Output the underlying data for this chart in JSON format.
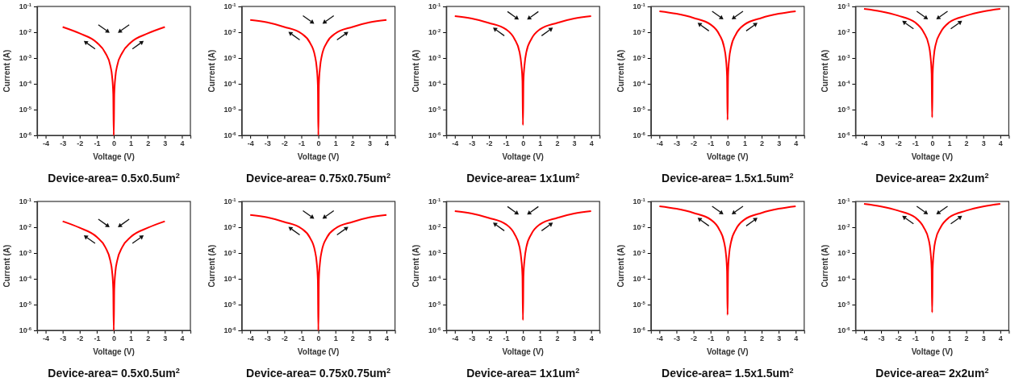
{
  "chart_data": [
    {
      "type": "line",
      "title": "Device-area= 0.5x0.5um$^{2}$",
      "xlabel": "Voltage (V)",
      "ylabel": "Current (A)",
      "log": "y",
      "grid": false,
      "marker": "none",
      "line_style": "solid",
      "xlim": [
        -4.5,
        4.5
      ],
      "xticks": [
        -4,
        -3,
        -2,
        -1,
        0,
        1,
        2,
        3,
        4
      ],
      "ylim": [
        1e-06,
        0.1
      ],
      "yticks": [
        {
          "value": 1e-06,
          "label": "10$^{-6}$"
        },
        {
          "value": 1e-05,
          "label": "10$^{-5}$"
        },
        {
          "value": 0.0001,
          "label": "10$^{-4}$"
        },
        {
          "value": 0.001,
          "label": "10$^{-3}$"
        },
        {
          "value": 0.01,
          "label": "10$^{-2}$"
        },
        {
          "value": 0.1,
          "label": "10$^{-1}$"
        }
      ],
      "series": [
        {
          "color": "#ff0000",
          "x": [
            -3,
            -2,
            -1,
            -0.5,
            -0.2,
            -0.1,
            -0.03,
            0,
            0.03,
            0.1,
            0.2,
            0.5,
            1,
            2,
            3
          ],
          "values": [
            0.016,
            0.009,
            0.004,
            0.0016,
            0.0005,
            0.0002,
            4e-05,
            1e-06,
            4e-05,
            0.0002,
            0.0005,
            0.0016,
            0.004,
            0.009,
            0.016
          ]
        }
      ]
    },
    {
      "type": "line",
      "title": "Device-area= 0.75x0.75um$^{2}$",
      "xlabel": "Voltage (V)",
      "ylabel": "Current (A)",
      "log": "y",
      "grid": false,
      "marker": "none",
      "line_style": "solid",
      "xlim": [
        -4.5,
        4.5
      ],
      "xticks": [
        -4,
        -3,
        -2,
        -1,
        0,
        1,
        2,
        3,
        4
      ],
      "ylim": [
        1e-06,
        0.1
      ],
      "yticks": [
        {
          "value": 1e-06,
          "label": "10$^{-6}$"
        },
        {
          "value": 1e-05,
          "label": "10$^{-5}$"
        },
        {
          "value": 0.0001,
          "label": "10$^{-4}$"
        },
        {
          "value": 0.001,
          "label": "10$^{-3}$"
        },
        {
          "value": 0.01,
          "label": "10$^{-2}$"
        },
        {
          "value": 0.1,
          "label": "10$^{-1}$"
        }
      ],
      "series": [
        {
          "color": "#ff0000",
          "x": [
            -4,
            -3,
            -2,
            -1,
            -0.5,
            -0.2,
            -0.1,
            -0.03,
            0,
            0.03,
            0.1,
            0.2,
            0.5,
            1,
            2,
            3,
            4
          ],
          "values": [
            0.03,
            0.024,
            0.016,
            0.009,
            0.004,
            0.0012,
            0.00045,
            9e-05,
            1e-06,
            9e-05,
            0.00045,
            0.0012,
            0.004,
            0.009,
            0.016,
            0.024,
            0.03
          ]
        }
      ]
    },
    {
      "type": "line",
      "title": "Device-area= 1x1um$^{2}$",
      "xlabel": "Voltage (V)",
      "ylabel": "Current (A)",
      "log": "y",
      "grid": false,
      "marker": "none",
      "line_style": "solid",
      "xlim": [
        -4.5,
        4.5
      ],
      "xticks": [
        -4,
        -3,
        -2,
        -1,
        0,
        1,
        2,
        3,
        4
      ],
      "ylim": [
        1e-06,
        0.1
      ],
      "yticks": [
        {
          "value": 1e-06,
          "label": "10$^{-6}$"
        },
        {
          "value": 1e-05,
          "label": "10$^{-5}$"
        },
        {
          "value": 0.0001,
          "label": "10$^{-4}$"
        },
        {
          "value": 0.001,
          "label": "10$^{-3}$"
        },
        {
          "value": 0.01,
          "label": "10$^{-2}$"
        },
        {
          "value": 0.1,
          "label": "10$^{-1}$"
        }
      ],
      "series": [
        {
          "color": "#ff0000",
          "x": [
            -4,
            -3,
            -2,
            -1,
            -0.5,
            -0.2,
            -0.1,
            -0.03,
            0,
            0.03,
            0.1,
            0.2,
            0.5,
            1,
            2,
            3,
            4
          ],
          "values": [
            0.042,
            0.034,
            0.023,
            0.013,
            0.0055,
            0.0017,
            0.0006,
            0.00013,
            2.5e-06,
            0.00013,
            0.0006,
            0.0017,
            0.0055,
            0.013,
            0.023,
            0.034,
            0.042
          ]
        }
      ]
    },
    {
      "type": "line",
      "title": "Device-area= 1.5x1.5um$^{2}$",
      "xlabel": "Voltage (V)",
      "ylabel": "Current (A)",
      "log": "y",
      "grid": false,
      "marker": "none",
      "line_style": "solid",
      "xlim": [
        -4.5,
        4.5
      ],
      "xticks": [
        -4,
        -3,
        -2,
        -1,
        0,
        1,
        2,
        3,
        4
      ],
      "ylim": [
        1e-06,
        0.1
      ],
      "yticks": [
        {
          "value": 1e-06,
          "label": "10$^{-6}$"
        },
        {
          "value": 1e-05,
          "label": "10$^{-5}$"
        },
        {
          "value": 0.0001,
          "label": "10$^{-4}$"
        },
        {
          "value": 0.001,
          "label": "10$^{-3}$"
        },
        {
          "value": 0.01,
          "label": "10$^{-2}$"
        },
        {
          "value": 0.1,
          "label": "10$^{-1}$"
        }
      ],
      "series": [
        {
          "color": "#ff0000",
          "x": [
            -4,
            -3,
            -2,
            -1,
            -0.5,
            -0.2,
            -0.1,
            -0.03,
            0,
            0.03,
            0.1,
            0.2,
            0.5,
            1,
            2,
            3,
            4
          ],
          "values": [
            0.065,
            0.052,
            0.036,
            0.02,
            0.0085,
            0.0026,
            0.001,
            0.0002,
            4e-06,
            0.0002,
            0.001,
            0.0026,
            0.0085,
            0.02,
            0.036,
            0.052,
            0.065
          ]
        }
      ]
    },
    {
      "type": "line",
      "title": "Device-area= 2x2um$^{2}$",
      "xlabel": "Voltage (V)",
      "ylabel": "Current (A)",
      "log": "y",
      "grid": false,
      "marker": "none",
      "line_style": "solid",
      "xlim": [
        -4.5,
        4.5
      ],
      "xticks": [
        -4,
        -3,
        -2,
        -1,
        0,
        1,
        2,
        3,
        4
      ],
      "ylim": [
        1e-06,
        0.1
      ],
      "yticks": [
        {
          "value": 1e-06,
          "label": "10$^{-6}$"
        },
        {
          "value": 1e-05,
          "label": "10$^{-5}$"
        },
        {
          "value": 0.0001,
          "label": "10$^{-4}$"
        },
        {
          "value": 0.001,
          "label": "10$^{-3}$"
        },
        {
          "value": 0.01,
          "label": "10$^{-2}$"
        },
        {
          "value": 0.1,
          "label": "10$^{-1}$"
        }
      ],
      "series": [
        {
          "color": "#ff0000",
          "x": [
            -4,
            -3,
            -2,
            -1,
            -0.5,
            -0.2,
            -0.1,
            -0.03,
            0,
            0.03,
            0.1,
            0.2,
            0.5,
            1,
            2,
            3,
            4
          ],
          "values": [
            0.08,
            0.064,
            0.044,
            0.024,
            0.01,
            0.0032,
            0.0012,
            0.00024,
            5e-06,
            0.00024,
            0.0012,
            0.0032,
            0.01,
            0.024,
            0.044,
            0.064,
            0.08
          ]
        }
      ]
    },
    {
      "type": "line",
      "title": "Device-area= 0.5x0.5um$^{2}$",
      "xlabel": "Voltage (V)",
      "ylabel": "Current (A)",
      "log": "y",
      "grid": false,
      "marker": "none",
      "line_style": "solid",
      "xlim": [
        -4.5,
        4.5
      ],
      "xticks": [
        -4,
        -3,
        -2,
        -1,
        0,
        1,
        2,
        3,
        4
      ],
      "ylim": [
        1e-06,
        0.1
      ],
      "yticks": [
        {
          "value": 1e-06,
          "label": "10$^{-6}$"
        },
        {
          "value": 1e-05,
          "label": "10$^{-5}$"
        },
        {
          "value": 0.0001,
          "label": "10$^{-4}$"
        },
        {
          "value": 0.001,
          "label": "10$^{-3}$"
        },
        {
          "value": 0.01,
          "label": "10$^{-2}$"
        },
        {
          "value": 0.1,
          "label": "10$^{-1}$"
        }
      ],
      "series": [
        {
          "color": "#ff0000",
          "x": [
            -3,
            -2,
            -1,
            -0.5,
            -0.2,
            -0.1,
            -0.03,
            0,
            0.03,
            0.1,
            0.2,
            0.5,
            1,
            2,
            3
          ],
          "values": [
            0.017,
            0.0095,
            0.0042,
            0.0017,
            0.0005,
            0.0002,
            4e-05,
            1e-06,
            4e-05,
            0.0002,
            0.0005,
            0.0017,
            0.0042,
            0.0095,
            0.017
          ]
        }
      ]
    },
    {
      "type": "line",
      "title": "Device-area= 0.75x0.75um$^{2}$",
      "xlabel": "Voltage (V)",
      "ylabel": "Current (A)",
      "log": "y",
      "grid": false,
      "marker": "none",
      "line_style": "solid",
      "xlim": [
        -4.5,
        4.5
      ],
      "xticks": [
        -4,
        -3,
        -2,
        -1,
        0,
        1,
        2,
        3,
        4
      ],
      "ylim": [
        1e-06,
        0.1
      ],
      "yticks": [
        {
          "value": 1e-06,
          "label": "10$^{-6}$"
        },
        {
          "value": 1e-05,
          "label": "10$^{-5}$"
        },
        {
          "value": 0.0001,
          "label": "10$^{-4}$"
        },
        {
          "value": 0.001,
          "label": "10$^{-3}$"
        },
        {
          "value": 0.01,
          "label": "10$^{-2}$"
        },
        {
          "value": 0.1,
          "label": "10$^{-1}$"
        }
      ],
      "series": [
        {
          "color": "#ff0000",
          "x": [
            -4,
            -3,
            -2,
            -1,
            -0.5,
            -0.2,
            -0.1,
            -0.03,
            0,
            0.03,
            0.1,
            0.2,
            0.5,
            1,
            2,
            3,
            4
          ],
          "values": [
            0.03,
            0.024,
            0.016,
            0.009,
            0.004,
            0.0012,
            0.00045,
            9e-05,
            1e-06,
            9e-05,
            0.00045,
            0.0012,
            0.004,
            0.009,
            0.016,
            0.024,
            0.03
          ]
        }
      ]
    },
    {
      "type": "line",
      "title": "Device-area= 1x1um$^{2}$",
      "xlabel": "Voltage (V)",
      "ylabel": "Current (A)",
      "log": "y",
      "grid": false,
      "marker": "none",
      "line_style": "solid",
      "xlim": [
        -4.5,
        4.5
      ],
      "xticks": [
        -4,
        -3,
        -2,
        -1,
        0,
        1,
        2,
        3,
        4
      ],
      "ylim": [
        1e-06,
        0.1
      ],
      "yticks": [
        {
          "value": 1e-06,
          "label": "10$^{-6}$"
        },
        {
          "value": 1e-05,
          "label": "10$^{-5}$"
        },
        {
          "value": 0.0001,
          "label": "10$^{-4}$"
        },
        {
          "value": 0.001,
          "label": "10$^{-3}$"
        },
        {
          "value": 0.01,
          "label": "10$^{-2}$"
        },
        {
          "value": 0.1,
          "label": "10$^{-1}$"
        }
      ],
      "series": [
        {
          "color": "#ff0000",
          "x": [
            -4,
            -3,
            -2,
            -1,
            -0.5,
            -0.2,
            -0.1,
            -0.03,
            0,
            0.03,
            0.1,
            0.2,
            0.5,
            1,
            2,
            3,
            4
          ],
          "values": [
            0.042,
            0.034,
            0.023,
            0.013,
            0.0055,
            0.0017,
            0.0006,
            0.00013,
            2.5e-06,
            0.00013,
            0.0006,
            0.0017,
            0.0055,
            0.013,
            0.023,
            0.034,
            0.042
          ]
        }
      ]
    },
    {
      "type": "line",
      "title": "Device-area= 1.5x1.5um$^{2}$",
      "xlabel": "Voltage (V)",
      "ylabel": "Current (A)",
      "log": "y",
      "grid": false,
      "marker": "none",
      "line_style": "solid",
      "xlim": [
        -4.5,
        4.5
      ],
      "xticks": [
        -4,
        -3,
        -2,
        -1,
        0,
        1,
        2,
        3,
        4
      ],
      "ylim": [
        1e-06,
        0.1
      ],
      "yticks": [
        {
          "value": 1e-06,
          "label": "10$^{-6}$"
        },
        {
          "value": 1e-05,
          "label": "10$^{-5}$"
        },
        {
          "value": 0.0001,
          "label": "10$^{-4}$"
        },
        {
          "value": 0.001,
          "label": "10$^{-3}$"
        },
        {
          "value": 0.01,
          "label": "10$^{-2}$"
        },
        {
          "value": 0.1,
          "label": "10$^{-1}$"
        }
      ],
      "series": [
        {
          "color": "#ff0000",
          "x": [
            -4,
            -3,
            -2,
            -1,
            -0.5,
            -0.2,
            -0.1,
            -0.03,
            0,
            0.03,
            0.1,
            0.2,
            0.5,
            1,
            2,
            3,
            4
          ],
          "values": [
            0.065,
            0.052,
            0.036,
            0.02,
            0.0085,
            0.0026,
            0.001,
            0.0002,
            4e-06,
            0.0002,
            0.001,
            0.0026,
            0.0085,
            0.02,
            0.036,
            0.052,
            0.065
          ]
        }
      ]
    },
    {
      "type": "line",
      "title": "Device-area= 2x2um$^{2}$",
      "xlabel": "Voltage (V)",
      "ylabel": "Current (A)",
      "log": "y",
      "grid": false,
      "marker": "none",
      "line_style": "solid",
      "xlim": [
        -4.5,
        4.5
      ],
      "xticks": [
        -4,
        -3,
        -2,
        -1,
        0,
        1,
        2,
        3,
        4
      ],
      "ylim": [
        1e-06,
        0.1
      ],
      "yticks": [
        {
          "value": 1e-06,
          "label": "10$^{-6}$"
        },
        {
          "value": 1e-05,
          "label": "10$^{-5}$"
        },
        {
          "value": 0.0001,
          "label": "10$^{-4}$"
        },
        {
          "value": 0.001,
          "label": "10$^{-3}$"
        },
        {
          "value": 0.01,
          "label": "10$^{-2}$"
        },
        {
          "value": 0.1,
          "label": "10$^{-1}$"
        }
      ],
      "series": [
        {
          "color": "#ff0000",
          "x": [
            -4,
            -3,
            -2,
            -1,
            -0.5,
            -0.2,
            -0.1,
            -0.03,
            0,
            0.03,
            0.1,
            0.2,
            0.5,
            1,
            2,
            3,
            4
          ],
          "values": [
            0.08,
            0.064,
            0.044,
            0.024,
            0.01,
            0.0032,
            0.0012,
            0.00024,
            5e-06,
            0.00024,
            0.0012,
            0.0032,
            0.01,
            0.024,
            0.044,
            0.064,
            0.08
          ]
        }
      ]
    }
  ]
}
